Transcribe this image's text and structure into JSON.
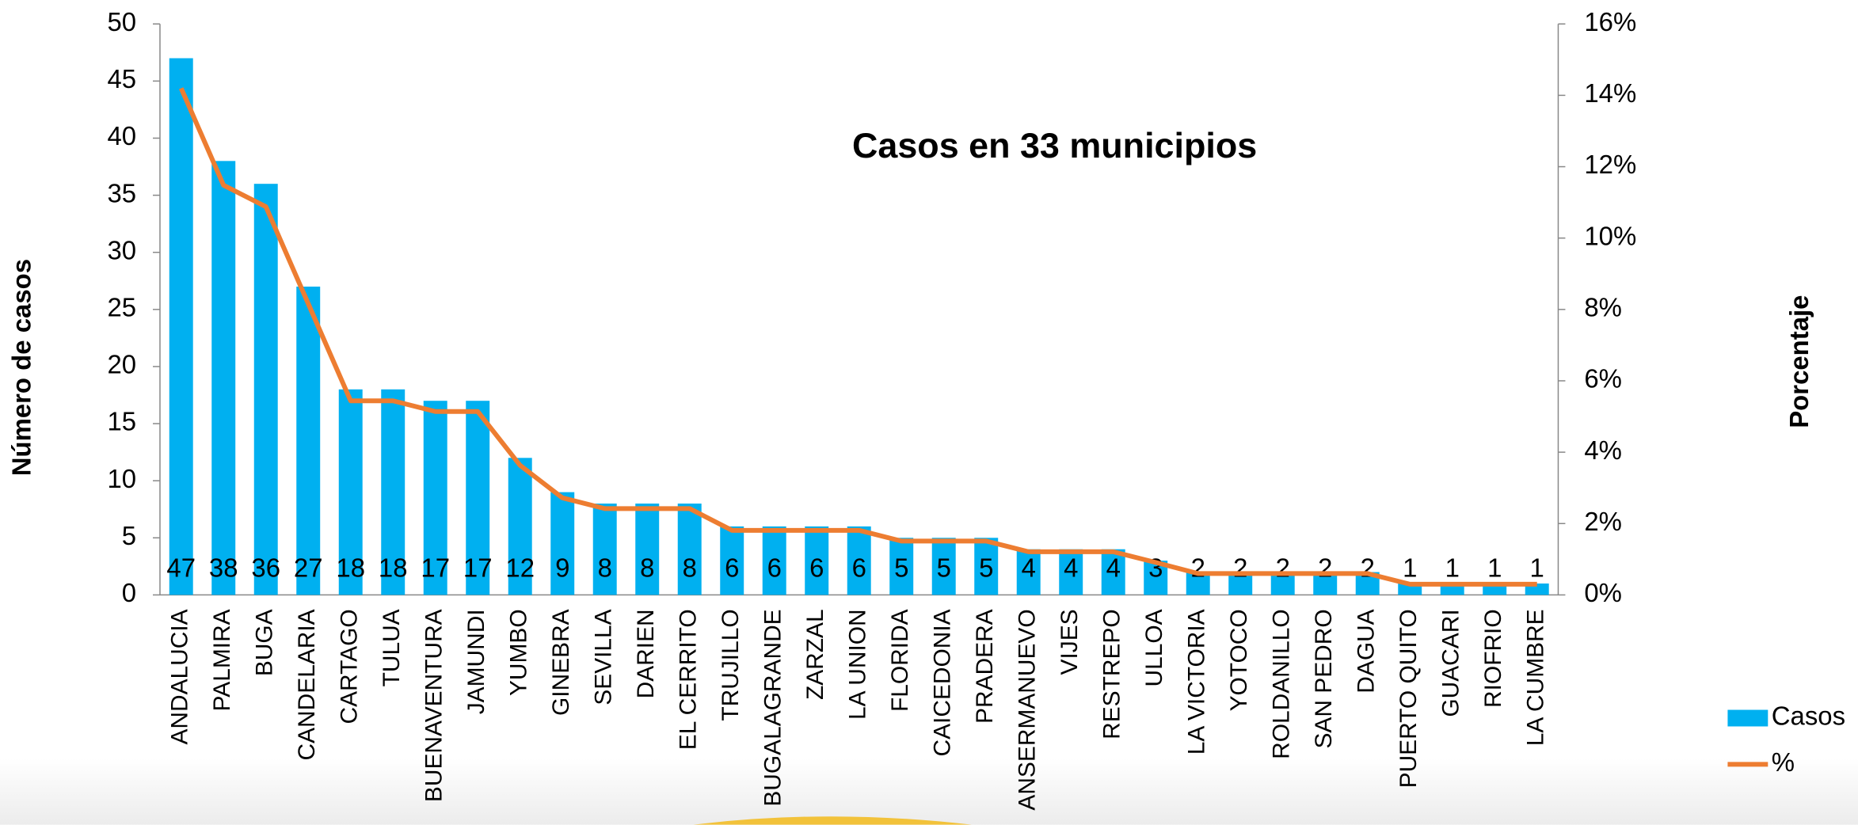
{
  "chart_data": {
    "type": "bar",
    "title": "Casos en 33 municipios",
    "ylabel": "Número de casos",
    "y2label": "Porcentaje",
    "categories": [
      "ANDALUCIA",
      "PALMIRA",
      "BUGA",
      "CANDELARIA",
      "CARTAGO",
      "TULUA",
      "BUENAVENTURA",
      "JAMUNDI",
      "YUMBO",
      "GINEBRA",
      "SEVILLA",
      "DARIEN",
      "EL CERRITO",
      "TRUJILLO",
      "BUGALAGRANDE",
      "ZARZAL",
      "LA UNION",
      "FLORIDA",
      "CAICEDONIA",
      "PRADERA",
      "ANSERMANUEVO",
      "VIJES",
      "RESTREPO",
      "ULLOA",
      "LA VICTORIA",
      "YOTOCO",
      "ROLDANILLO",
      "SAN PEDRO",
      "DAGUA",
      "PUERTO QUITO",
      "GUACARI",
      "RIOFRIO",
      "LA CUMBRE"
    ],
    "series": [
      {
        "name": "Casos",
        "color": "#00b0f0",
        "values": [
          47,
          38,
          36,
          27,
          18,
          18,
          17,
          17,
          12,
          9,
          8,
          8,
          8,
          6,
          6,
          6,
          6,
          5,
          5,
          5,
          4,
          4,
          4,
          3,
          2,
          2,
          2,
          2,
          2,
          1,
          1,
          1,
          1
        ]
      },
      {
        "name": "%",
        "color": "#ed7d31",
        "axis": "y2",
        "values": [
          14.2,
          11.48,
          10.88,
          8.16,
          5.44,
          5.44,
          5.14,
          5.14,
          3.63,
          2.72,
          2.42,
          2.42,
          2.42,
          1.81,
          1.81,
          1.81,
          1.81,
          1.51,
          1.51,
          1.51,
          1.21,
          1.21,
          1.21,
          0.91,
          0.6,
          0.6,
          0.6,
          0.6,
          0.6,
          0.3,
          0.3,
          0.3,
          0.3
        ]
      }
    ],
    "ylim": [
      0,
      50
    ],
    "yticks": [
      0,
      5,
      10,
      15,
      20,
      25,
      30,
      35,
      40,
      45,
      50
    ],
    "y2lim": [
      0,
      16
    ],
    "y2ticks": [
      {
        "value": 0,
        "label": "0%"
      },
      {
        "value": 2,
        "label": "2%"
      },
      {
        "value": 4,
        "label": "4%"
      },
      {
        "value": 6,
        "label": "6%"
      },
      {
        "value": 8,
        "label": "8%"
      },
      {
        "value": 10,
        "label": "10%"
      },
      {
        "value": 12,
        "label": "12%"
      },
      {
        "value": 14,
        "label": "14%"
      },
      {
        "value": 16,
        "label": "16%"
      }
    ],
    "legend": "right"
  }
}
